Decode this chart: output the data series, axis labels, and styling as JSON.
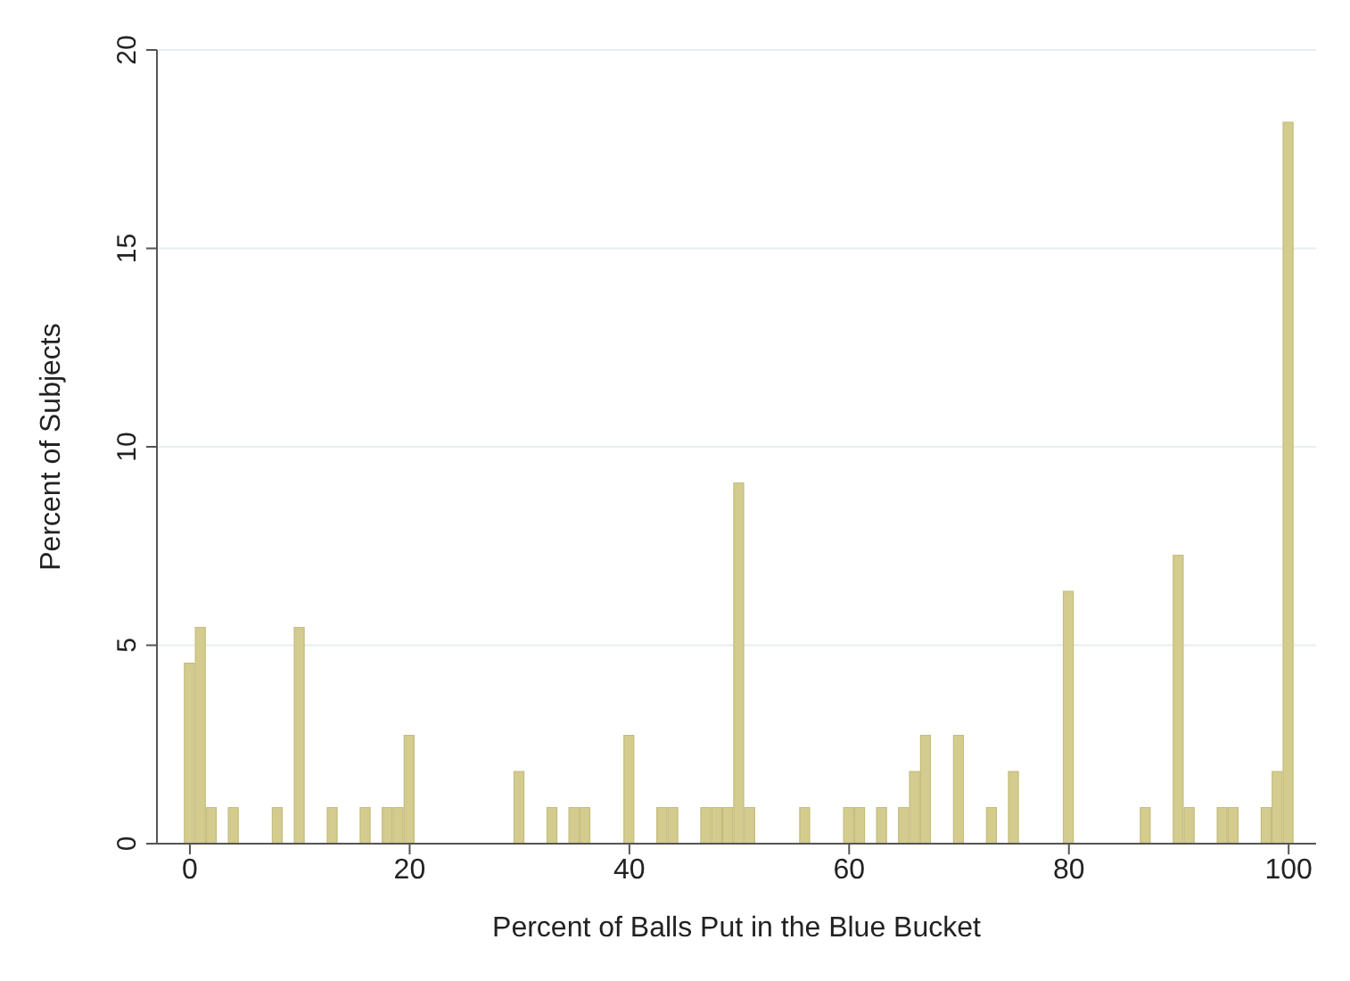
{
  "chart_data": {
    "type": "histogram",
    "xlabel": "Percent of Balls Put in the Blue Bucket",
    "ylabel": "Percent of Subjects",
    "color": "#d3cc8e",
    "bins": [
      -0.5,
      0.5,
      1.5,
      2.5,
      3.5,
      4.5,
      5.5,
      6.5,
      7.5,
      8.5,
      9.5,
      10.5,
      11.5,
      12.5,
      13.5,
      14.5,
      15.5,
      16.5,
      17.5,
      18.5,
      19.5,
      20.5,
      21.5,
      22.5,
      23.5,
      24.5,
      25.5,
      26.5,
      27.5,
      28.5,
      29.5,
      30.5,
      31.5,
      32.5,
      33.5,
      34.5,
      35.5,
      36.5,
      37.5,
      38.5,
      39.5,
      40.5,
      41.5,
      42.5,
      43.5,
      44.5,
      45.5,
      46.5,
      47.5,
      48.5,
      49.5,
      50.5,
      51.5,
      52.5,
      53.5,
      54.5,
      55.5,
      56.5,
      57.5,
      58.5,
      59.5,
      60.5,
      61.5,
      62.5,
      63.5,
      64.5,
      65.5,
      66.5,
      67.5,
      68.5,
      69.5,
      70.5,
      71.5,
      72.5,
      73.5,
      74.5,
      75.5,
      76.5,
      77.5,
      78.5,
      79.5,
      80.5,
      81.5,
      82.5,
      83.5,
      84.5,
      85.5,
      86.5,
      87.5,
      88.5,
      89.5,
      90.5,
      91.5,
      92.5,
      93.5,
      94.5,
      95.5,
      96.5,
      97.5,
      98.5,
      99.5,
      100.5
    ],
    "values": [
      4.55,
      5.45,
      0.91,
      0,
      0.91,
      0,
      0,
      0,
      0.91,
      0,
      5.45,
      0,
      0,
      0.91,
      0,
      0,
      0.91,
      0,
      0.91,
      0.91,
      2.73,
      0,
      0,
      0,
      0,
      0,
      0,
      0,
      0,
      0,
      1.82,
      0,
      0,
      0.91,
      0,
      0.91,
      0.91,
      0,
      0,
      0,
      2.73,
      0,
      0,
      0.91,
      0.91,
      0,
      0,
      0.91,
      0.91,
      0.91,
      9.09,
      0.91,
      0,
      0,
      0,
      0,
      0.91,
      0,
      0,
      0,
      0.91,
      0.91,
      0,
      0.91,
      0,
      0.91,
      1.82,
      2.73,
      0,
      0,
      2.73,
      0,
      0,
      0.91,
      0,
      1.82,
      0,
      0,
      0,
      0,
      6.36,
      0,
      0,
      0,
      0,
      0,
      0,
      0.91,
      0,
      0,
      7.27,
      0.91,
      0,
      0,
      0.91,
      0.91,
      0,
      0,
      0.91,
      1.82,
      18.18
    ],
    "xlim": [
      -3,
      102.5
    ],
    "xticks": [
      0,
      20,
      40,
      60,
      80,
      100
    ],
    "ylim": [
      0,
      20
    ],
    "yticks": [
      0,
      5,
      10,
      15,
      20
    ],
    "grid": "y"
  }
}
